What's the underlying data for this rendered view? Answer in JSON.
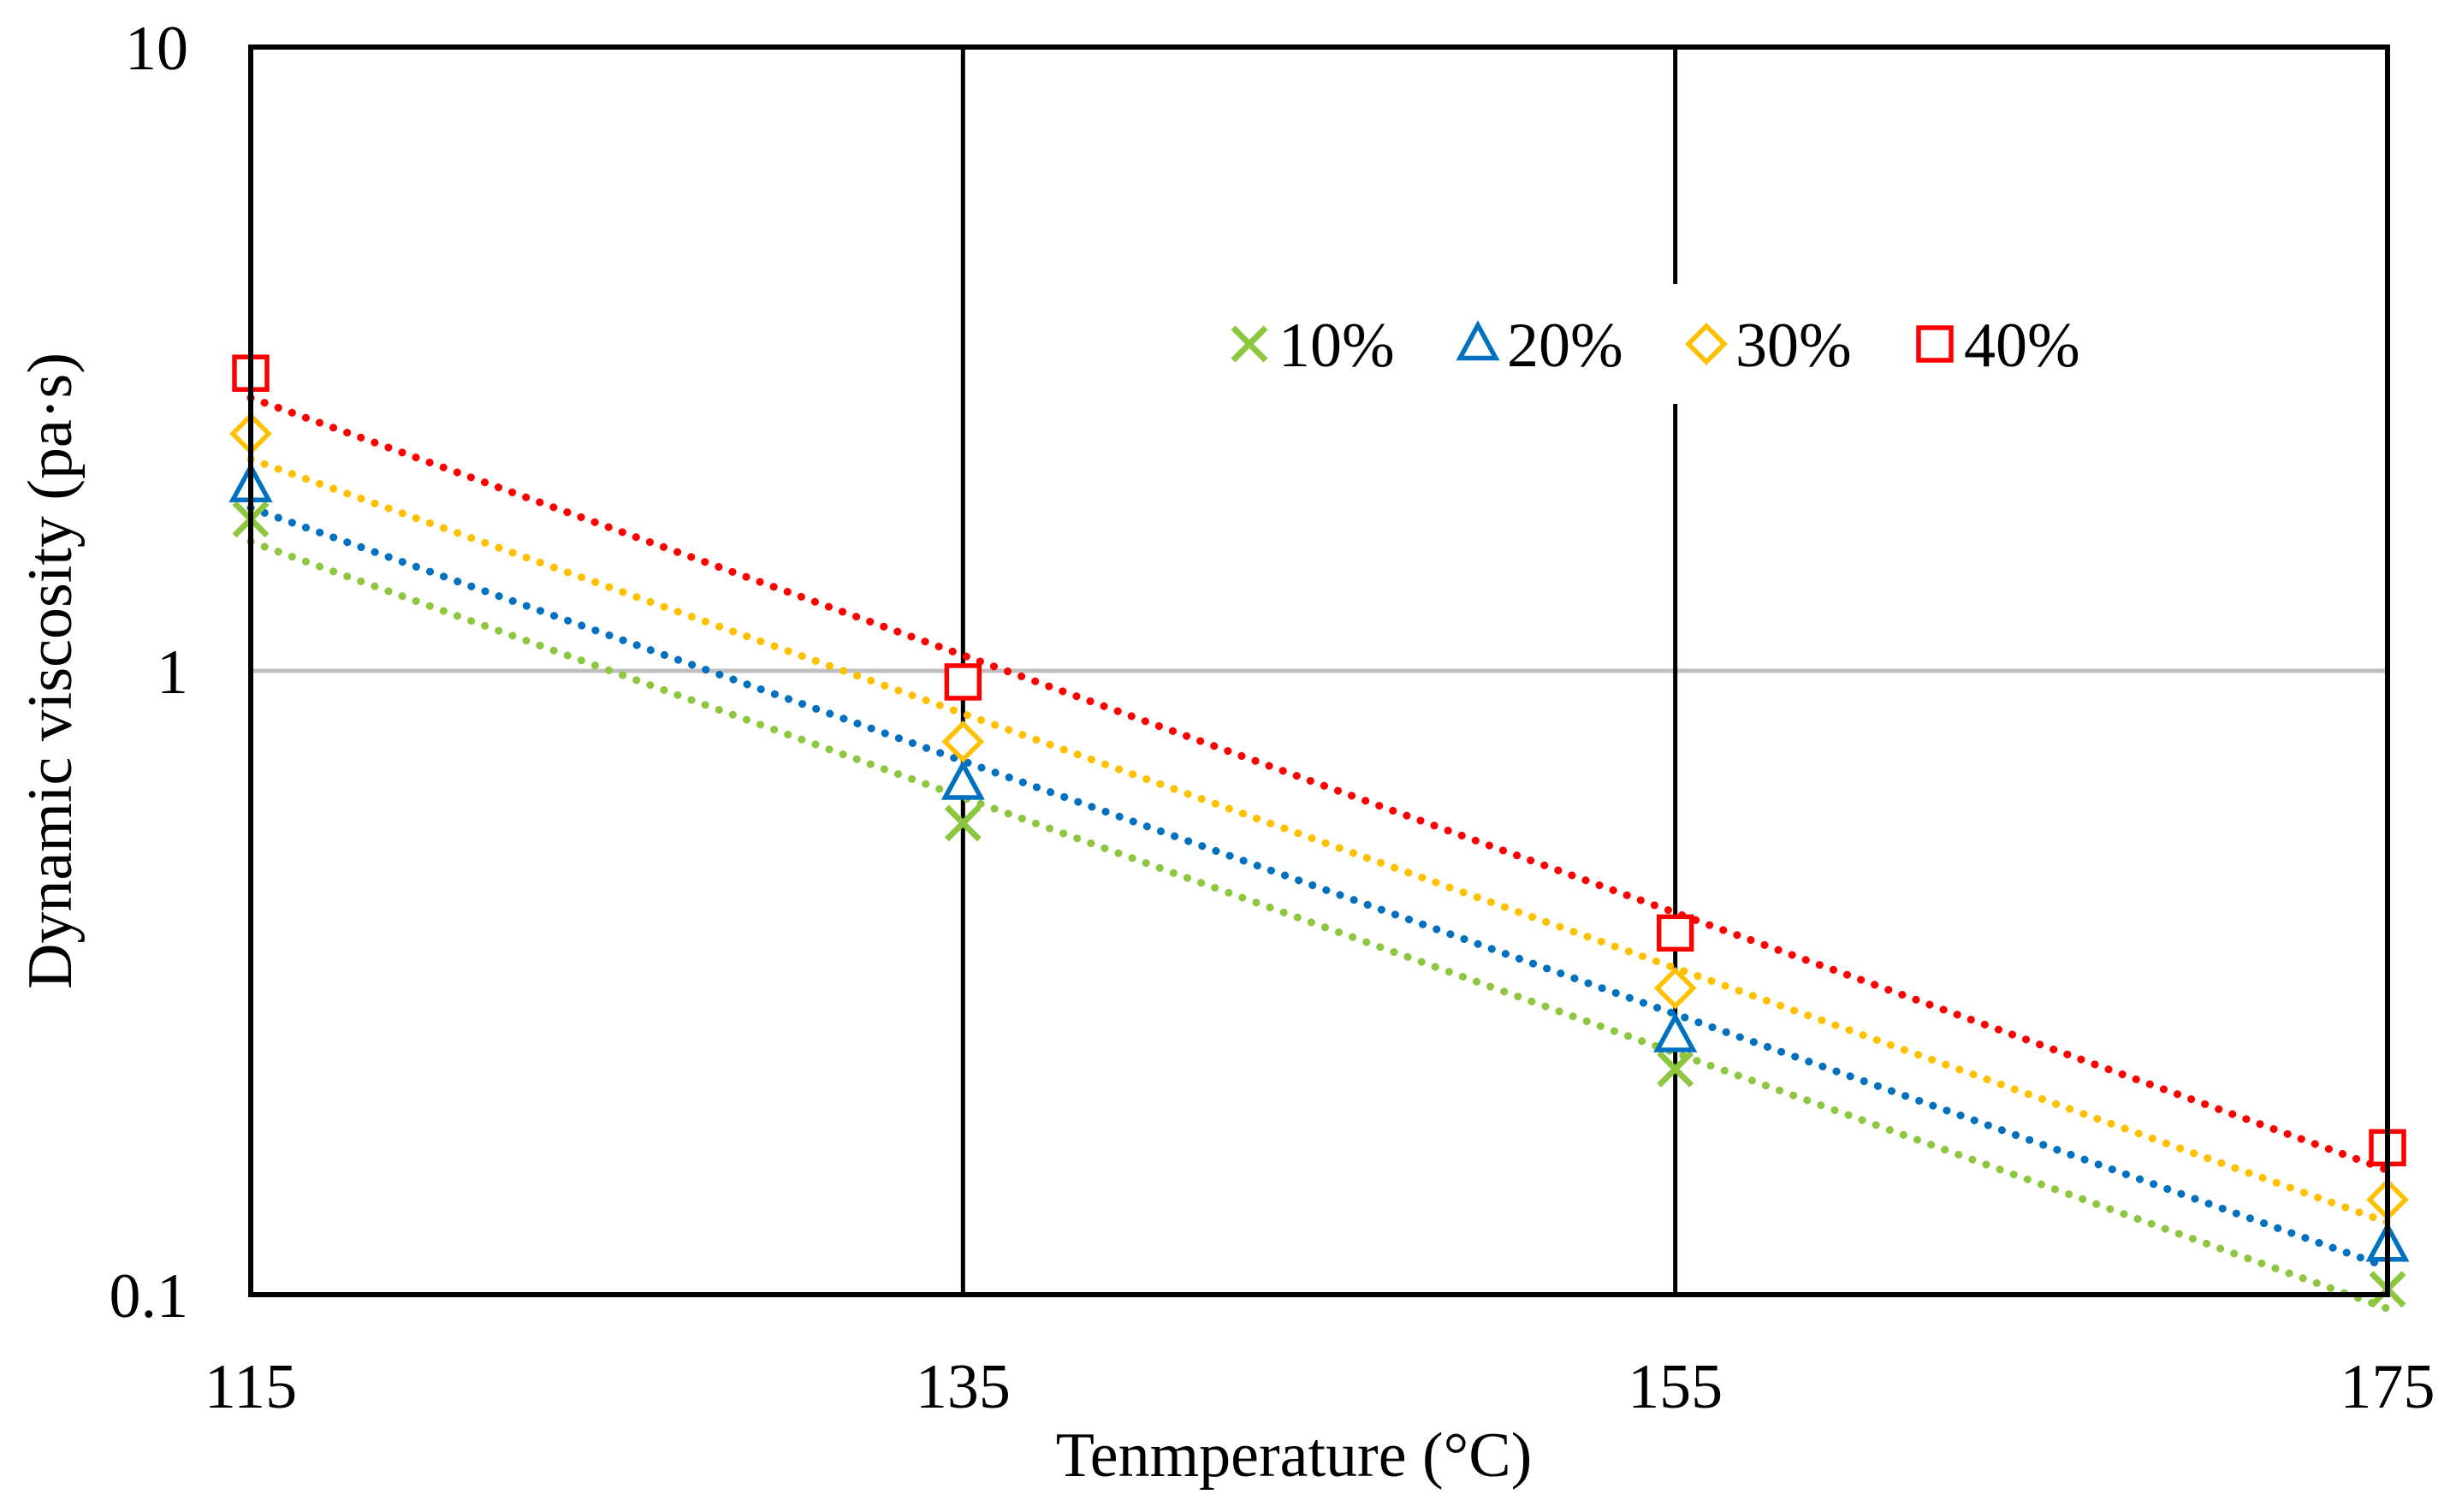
{
  "chart_data": {
    "type": "line",
    "scale_y": "log",
    "title": "",
    "xlabel": "Tenmperature (°C)",
    "ylabel": "Dynamic viscosity (pa·s)",
    "xlim": [
      115,
      175
    ],
    "ylim": [
      0.1,
      10
    ],
    "x_ticks": [
      {
        "value": 115,
        "label": "115"
      },
      {
        "value": 135,
        "label": "135"
      },
      {
        "value": 155,
        "label": "155"
      },
      {
        "value": 175,
        "label": "175"
      }
    ],
    "y_ticks": [
      {
        "value": 0.1,
        "label": "0.1"
      },
      {
        "value": 1,
        "label": "1"
      },
      {
        "value": 10,
        "label": "10"
      }
    ],
    "grid": {
      "vertical": true,
      "horizontal": true,
      "vertical_color": "#000000",
      "horizontal_color": "#bfbfbf"
    },
    "legend_position": "top-right",
    "x": [
      115,
      135,
      155,
      175
    ],
    "series": [
      {
        "name": "10%",
        "marker": "x",
        "color": "#8dc63f",
        "values": [
          1.75,
          0.57,
          0.23,
          0.102
        ]
      },
      {
        "name": "20%",
        "marker": "triangle",
        "color": "#0070c0",
        "values": [
          1.98,
          0.66,
          0.26,
          0.12
        ]
      },
      {
        "name": "30%",
        "marker": "diamond",
        "color": "#ffc000",
        "values": [
          2.4,
          0.77,
          0.31,
          0.142
        ]
      },
      {
        "name": "40%",
        "marker": "square",
        "color": "#ff0000",
        "values": [
          3.0,
          0.96,
          0.38,
          0.172
        ]
      }
    ]
  }
}
